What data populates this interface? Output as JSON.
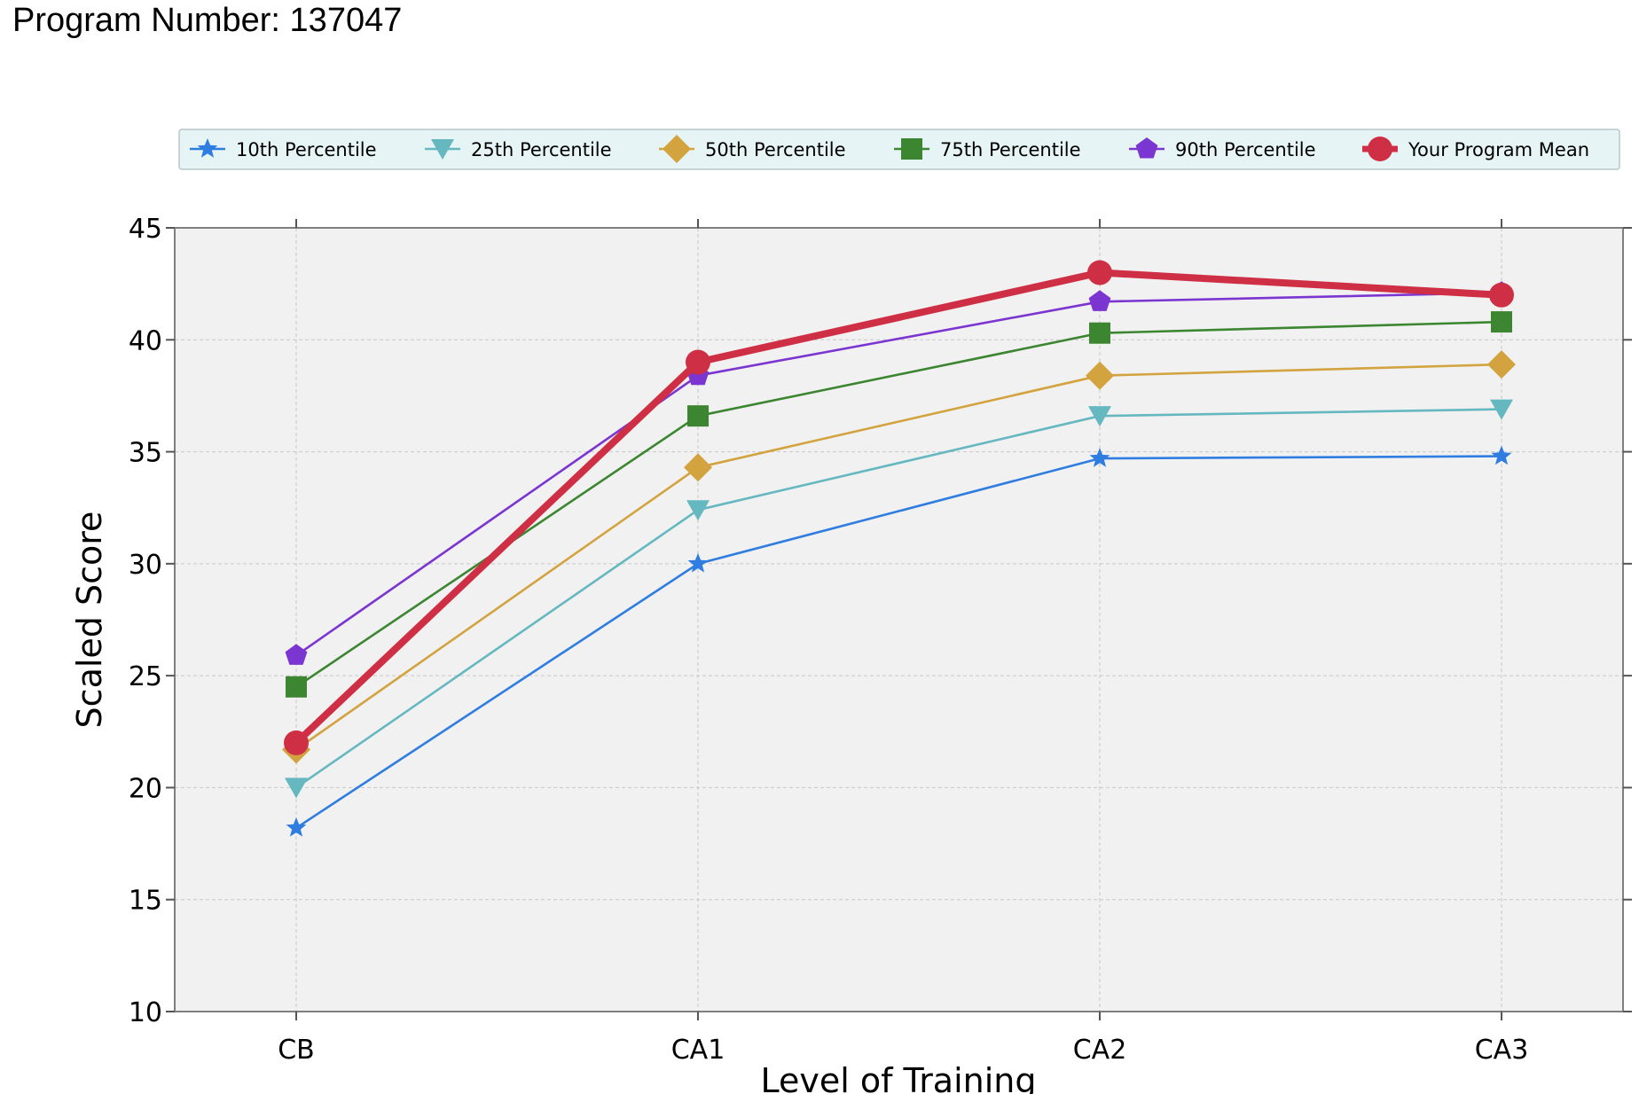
{
  "header": {
    "label": "Program Number:",
    "program_number": "137047"
  },
  "chart_data": {
    "type": "line",
    "categories": [
      "CB",
      "CA1",
      "CA2",
      "CA3"
    ],
    "xlabel": "Level of Training",
    "ylabel": "Scaled Score",
    "ylim": [
      10,
      45
    ],
    "yticks": [
      10,
      15,
      20,
      25,
      30,
      35,
      40,
      45
    ],
    "grid": true,
    "legend_position": "top",
    "series": [
      {
        "name": "10th Percentile",
        "values": [
          18.2,
          30.0,
          34.7,
          34.8
        ],
        "color": "#2f7de0",
        "marker": "star"
      },
      {
        "name": "25th Percentile",
        "values": [
          20.0,
          32.4,
          36.6,
          36.9
        ],
        "color": "#65b8c0",
        "marker": "triangle-down"
      },
      {
        "name": "50th Percentile",
        "values": [
          21.7,
          34.3,
          38.4,
          38.9
        ],
        "color": "#d2a33e",
        "marker": "diamond"
      },
      {
        "name": "75th Percentile",
        "values": [
          24.5,
          36.6,
          40.3,
          40.8
        ],
        "color": "#3c8531",
        "marker": "square"
      },
      {
        "name": "90th Percentile",
        "values": [
          25.9,
          38.4,
          41.7,
          42.1
        ],
        "color": "#7b35d0",
        "marker": "pentagon"
      },
      {
        "name": "Your Program Mean",
        "values": [
          22.0,
          39.0,
          43.0,
          42.0
        ],
        "color": "#cf2f44",
        "marker": "circle"
      }
    ]
  }
}
